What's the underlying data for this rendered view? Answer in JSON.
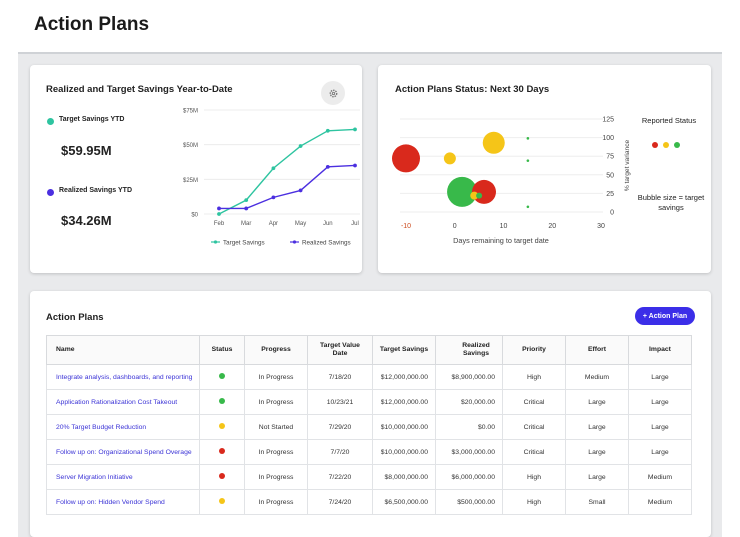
{
  "page": {
    "title": "Action Plans"
  },
  "savings_card": {
    "title": "Realized and Target Savings Year-to-Date",
    "target": {
      "label": "Target Savings YTD",
      "value": "$59.95M",
      "color": "#2ec4a0"
    },
    "realized": {
      "label": "Realized Savings YTD",
      "value": "$34.26M",
      "color": "#4b2fe0"
    }
  },
  "status_card": {
    "title": "Action Plans Status: Next 30 Days",
    "legend_title": "Reported Status",
    "bubble_note": "Bubble size = target savings",
    "status_colors": [
      "#d9291c",
      "#f5c518",
      "#38b94a"
    ]
  },
  "table_card": {
    "title": "Action Plans",
    "add_button": "+ Action Plan",
    "columns": [
      "Name",
      "Status",
      "Progress",
      "Target Value Date",
      "Target Savings",
      "Realized Savings",
      "Priority",
      "Effort",
      "Impact"
    ],
    "rows": [
      {
        "name": "Integrate analysis, dashboards, and reporting",
        "status": "green",
        "progress": "In Progress",
        "date": "7/18/20",
        "target": "$12,000,000.00",
        "realized": "$8,900,000.00",
        "priority": "High",
        "effort": "Medium",
        "impact": "Large"
      },
      {
        "name": "Application Rationalization Cost Takeout",
        "status": "green",
        "progress": "In Progress",
        "date": "10/23/21",
        "target": "$12,000,000.00",
        "realized": "$20,000.00",
        "priority": "Critical",
        "effort": "Large",
        "impact": "Large"
      },
      {
        "name": "20% Target Budget Reduction",
        "status": "yellow",
        "progress": "Not Started",
        "date": "7/29/20",
        "target": "$10,000,000.00",
        "realized": "$0.00",
        "priority": "Critical",
        "effort": "Large",
        "impact": "Large"
      },
      {
        "name": "Follow up on: Organizational Spend Overage",
        "status": "red",
        "progress": "In Progress",
        "date": "7/7/20",
        "target": "$10,000,000.00",
        "realized": "$3,000,000.00",
        "priority": "Critical",
        "effort": "Large",
        "impact": "Large"
      },
      {
        "name": "Server Migration Initiative",
        "status": "red",
        "progress": "In Progress",
        "date": "7/22/20",
        "target": "$8,000,000.00",
        "realized": "$6,000,000.00",
        "priority": "High",
        "effort": "Large",
        "impact": "Medium"
      },
      {
        "name": "Follow up on: Hidden Vendor Spend",
        "status": "yellow",
        "progress": "In Progress",
        "date": "7/24/20",
        "target": "$6,500,000.00",
        "realized": "$500,000.00",
        "priority": "High",
        "effort": "Small",
        "impact": "Medium"
      }
    ],
    "status_color_map": {
      "green": "#38b94a",
      "yellow": "#f5c518",
      "red": "#d9291c"
    }
  },
  "chart_data": [
    {
      "type": "line",
      "title": "Realized and Target Savings Year-to-Date",
      "categories": [
        "Feb",
        "Mar",
        "Apr",
        "May",
        "Jun",
        "Jul"
      ],
      "y_ticks": [
        "$0",
        "$25M",
        "$50M",
        "$75M"
      ],
      "ylim": [
        0,
        75
      ],
      "grid": true,
      "legend": "bottom",
      "series": [
        {
          "name": "Target Savings",
          "color": "#2ec4a0",
          "x": [
            0.0,
            1.0,
            2.0,
            3.0,
            4.0,
            5.0
          ],
          "values": [
            0,
            10,
            33,
            49,
            60,
            61
          ]
        },
        {
          "name": "Realized Savings",
          "color": "#4b2fe0",
          "x": [
            0.0,
            1.0,
            2.0,
            3.0,
            4.0,
            5.0
          ],
          "values": [
            4,
            4,
            12,
            17,
            34,
            35
          ]
        }
      ]
    },
    {
      "type": "scatter",
      "title": "Action Plans Status: Next 30 Days",
      "xlabel": "Days remaining to target date",
      "ylabel": "% target variance",
      "x_ticks": [
        -10,
        0,
        10,
        20,
        30
      ],
      "y_ticks": [
        0,
        25,
        50,
        75,
        100,
        125
      ],
      "xlim": [
        -10,
        30
      ],
      "ylim": [
        0,
        125
      ],
      "grid": true,
      "points": [
        {
          "x": -10,
          "y": 72,
          "size": 14,
          "color": "#d9291c"
        },
        {
          "x": -1,
          "y": 72,
          "size": 6,
          "color": "#f5c518"
        },
        {
          "x": 8,
          "y": 93,
          "size": 11,
          "color": "#f5c518"
        },
        {
          "x": 1.5,
          "y": 27,
          "size": 15,
          "color": "#38b94a"
        },
        {
          "x": 6,
          "y": 27,
          "size": 12,
          "color": "#d9291c"
        },
        {
          "x": 4,
          "y": 22,
          "size": 4,
          "color": "#f5c518"
        },
        {
          "x": 5,
          "y": 22,
          "size": 3,
          "color": "#38b94a"
        },
        {
          "x": 15,
          "y": 99,
          "size": 1.3,
          "color": "#38b94a"
        },
        {
          "x": 15,
          "y": 69,
          "size": 1.3,
          "color": "#38b94a"
        },
        {
          "x": 15,
          "y": 7,
          "size": 1.3,
          "color": "#38b94a"
        }
      ]
    }
  ]
}
